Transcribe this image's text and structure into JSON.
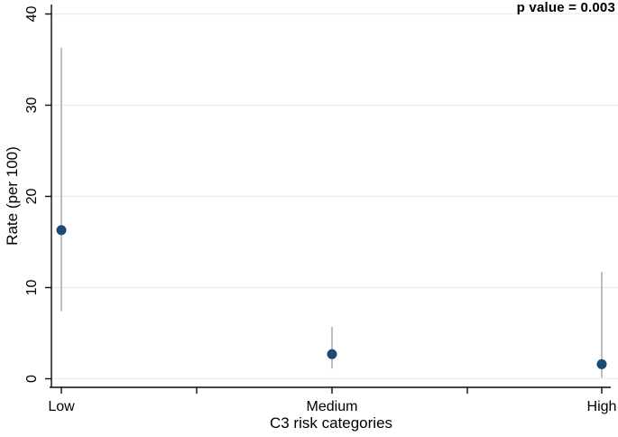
{
  "chart_data": {
    "type": "scatter",
    "subtype": "point-estimates-with-95ci",
    "title": "",
    "xlabel": "C3 risk categories",
    "ylabel": "Rate (per 100)",
    "annotation": "p value = 0.003",
    "categories": [
      "Low",
      "Medium",
      "High"
    ],
    "series": [
      {
        "name": "Rate (per 100)",
        "values": [
          16.3,
          2.7,
          1.6
        ],
        "ci_low": [
          7.4,
          1.1,
          0.1
        ],
        "ci_high": [
          36.3,
          5.7,
          11.7
        ]
      }
    ],
    "ylim": [
      0,
      40
    ],
    "yticks": [
      0,
      10,
      20,
      30,
      40
    ],
    "grid": "horizontal",
    "legend": "none",
    "colors": {
      "marker": "#1b4a72",
      "ci_line": "#b4b8ba",
      "gridline": "#e8f1f1",
      "axis": "#0a0a0a",
      "text": "#000000"
    }
  }
}
